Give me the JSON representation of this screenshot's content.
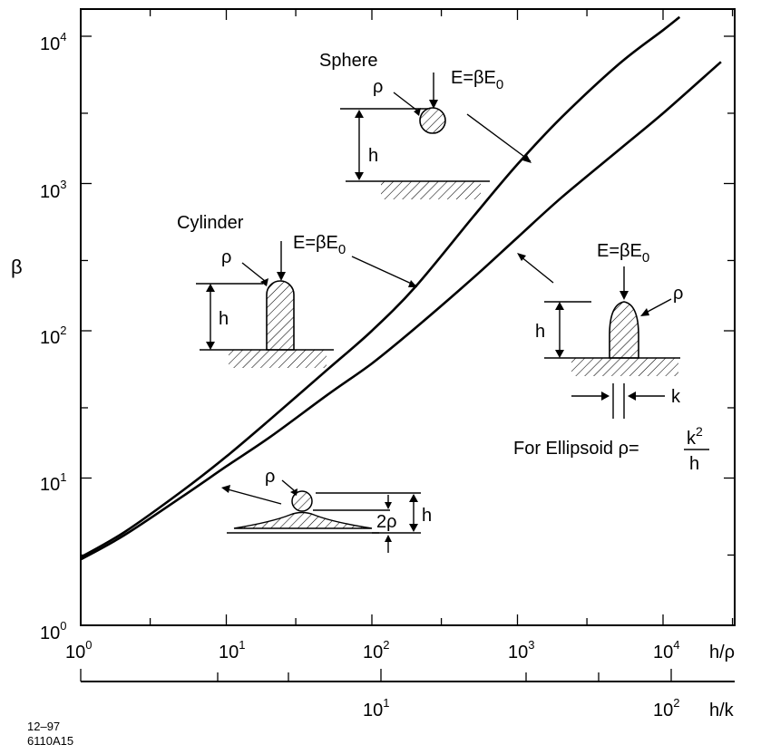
{
  "chart_data": {
    "type": "line",
    "x_scale": "log",
    "y_scale": "log",
    "xlim": [
      1,
      25000
    ],
    "ylim": [
      1,
      10000
    ],
    "grid": false,
    "xlabel": "h/ρ",
    "ylabel": "β",
    "x_ticks": [
      {
        "base": "10",
        "exp": "0"
      },
      {
        "base": "10",
        "exp": "1"
      },
      {
        "base": "10",
        "exp": "2"
      },
      {
        "base": "10",
        "exp": "3"
      },
      {
        "base": "10",
        "exp": "4"
      }
    ],
    "y_ticks": [
      {
        "base": "10",
        "exp": "0"
      },
      {
        "base": "10",
        "exp": "1"
      },
      {
        "base": "10",
        "exp": "2"
      },
      {
        "base": "10",
        "exp": "3"
      },
      {
        "base": "10",
        "exp": "4"
      }
    ],
    "secondary_axis": {
      "label": "h/k",
      "ticks": [
        {
          "base": "10",
          "exp": "1"
        },
        {
          "base": "10",
          "exp": "2"
        }
      ]
    },
    "series": [
      {
        "x": [
          1,
          2,
          5,
          10,
          20,
          50,
          100,
          200,
          500,
          1000,
          2000,
          5000,
          10000,
          13000
        ],
        "y": [
          2.9,
          4.3,
          8.2,
          14,
          25,
          55,
          100,
          200,
          600,
          1350,
          2800,
          6500,
          11000,
          13500
        ]
      },
      {
        "x": [
          1,
          2,
          5,
          10,
          20,
          50,
          100,
          200,
          500,
          1000,
          2000,
          5000,
          10000,
          25000
        ],
        "y": [
          2.8,
          4.1,
          7.5,
          12,
          19,
          37,
          60,
          105,
          230,
          430,
          800,
          1700,
          3000,
          6700
        ]
      }
    ],
    "annotations": {
      "sphere": {
        "title": "Sphere",
        "field": "E=βE",
        "sub": "0",
        "rho": "ρ",
        "h": "h"
      },
      "cylinder": {
        "title": "Cylinder",
        "field": "E=βE",
        "sub": "0",
        "rho": "ρ",
        "h": "h"
      },
      "ellipsoid": {
        "field": "E=βE",
        "sub": "0",
        "rho": "ρ",
        "h": "h",
        "k": "k",
        "formula_prefix": "For Ellipsoid ρ=",
        "num_base": "k",
        "num_exp": "2",
        "den": "h"
      },
      "hemisphere": {
        "rho": "ρ",
        "h": "h",
        "two_rho": "2ρ"
      }
    }
  },
  "figure_id": {
    "line1": "12–97",
    "line2": "6110A15"
  }
}
